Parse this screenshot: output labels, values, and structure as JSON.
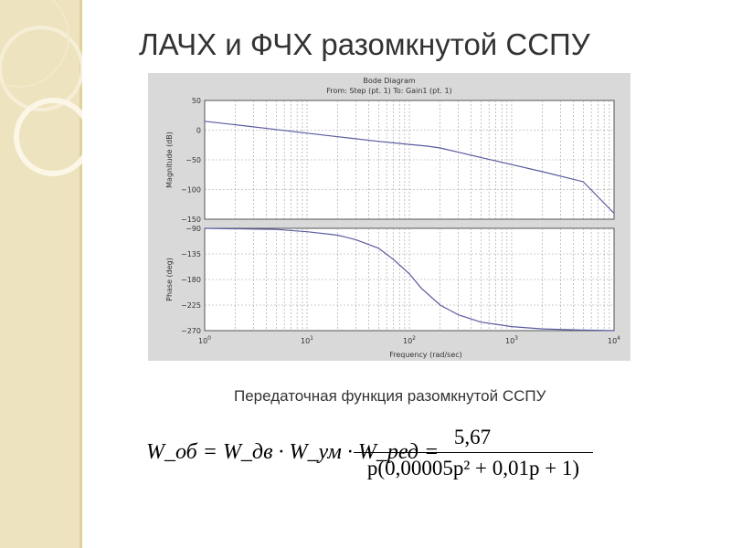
{
  "slide": {
    "title": "ЛАЧХ и ФЧХ разомкнутой ССПУ",
    "caption": "Передаточная функция разомкнутой ССПУ",
    "formula_lhs": "W_об = W_дв · W_ум · W_ред =",
    "formula_numerator": "5,67",
    "formula_denominator": "p(0,00005p² + 0,01p + 1)"
  },
  "chart_data": {
    "type": "line",
    "title": "Bode Diagram",
    "subtitle": "From: Step (pt. 1)  To: Gain1 (pt. 1)",
    "xlabel": "Frequency  (rad/sec)",
    "xscale": "log",
    "xlim": [
      1,
      10000
    ],
    "x_ticks": [
      1,
      10,
      100,
      1000,
      10000
    ],
    "x_tick_labels": [
      "10^0",
      "10^1",
      "10^2",
      "10^3",
      "10^4"
    ],
    "grid": true,
    "subplots": [
      {
        "name": "magnitude",
        "ylabel": "Magnitude (dB)",
        "ylim": [
          -150,
          50
        ],
        "y_ticks": [
          50,
          0,
          -50,
          -100,
          -150
        ],
        "x": [
          1,
          2,
          5,
          10,
          20,
          50,
          100,
          150,
          200,
          300,
          500,
          1000,
          2000,
          5000,
          10000
        ],
        "values": [
          15,
          9,
          1,
          -5,
          -11,
          -19,
          -24,
          -27,
          -30,
          -37,
          -46,
          -58,
          -70,
          -87,
          -140
        ]
      },
      {
        "name": "phase",
        "ylabel": "Phase (deg)",
        "ylim": [
          -270,
          -90
        ],
        "y_ticks": [
          -90,
          -135,
          -180,
          -225,
          -270
        ],
        "x": [
          1,
          5,
          10,
          20,
          30,
          50,
          70,
          100,
          130,
          200,
          300,
          500,
          1000,
          2000,
          5000,
          10000
        ],
        "values": [
          -90,
          -92,
          -96,
          -102,
          -110,
          -125,
          -145,
          -170,
          -195,
          -225,
          -242,
          -255,
          -263,
          -267,
          -269,
          -270
        ]
      }
    ]
  },
  "colors": {
    "line": "#5a5aa0",
    "panel": "#d9d9d9",
    "sidebar": "#eee3bf"
  }
}
